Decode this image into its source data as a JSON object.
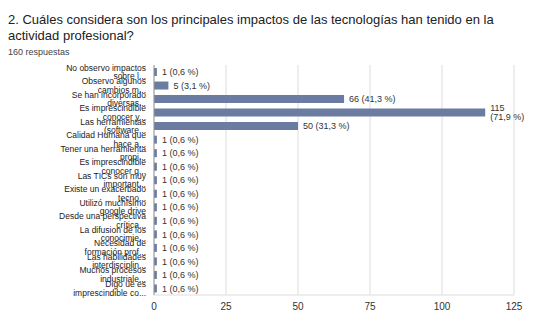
{
  "chart_data": {
    "type": "bar",
    "orientation": "horizontal",
    "title": "2. Cuáles considera son los principales impactos de las tecnologías han tenido en la actividad profesional?",
    "subtitle": "160 respuestas",
    "categories": [
      "No observo impactos sobre l...",
      "Observo algunos cambios m...",
      "Se han incorporado diversas...",
      "Es imprescindible conocer y...",
      "Las herramientas (software...",
      "Calidad Humana que hace a...",
      "Tener una herramienta propi...",
      "Es imprescindible conocer q...",
      "Las TICs son muy important...",
      "Existe un exacerbado tecno...",
      "Utilizó muchísimo google drive",
      "Desde una perspectiva crítica...",
      "La difusion de los conocimie...",
      "Necesidad de formación prof...",
      "Las habilidades interdisciplin...",
      "Muchos procesos industriale...",
      "Digo ue es imprescindible co..."
    ],
    "values": [
      1,
      5,
      66,
      115,
      50,
      1,
      1,
      1,
      1,
      1,
      1,
      1,
      1,
      1,
      1,
      1,
      1
    ],
    "value_labels": [
      "1 (0,6 %)",
      "5 (3,1 %)",
      "66 (41,3 %)",
      "115 (71,9 %)",
      "50 (31,3 %)",
      "1 (0,6 %)",
      "1 (0,6 %)",
      "1 (0,6 %)",
      "1 (0,6 %)",
      "1 (0,6 %)",
      "1 (0,6 %)",
      "1 (0,6 %)",
      "1 (0,6 %)",
      "1 (0,6 %)",
      "1 (0,6 %)",
      "1 (0,6 %)",
      "1 (0,6 %)"
    ],
    "color": "#6b7ba1",
    "xlim": [
      0,
      125
    ],
    "xticks": [
      0,
      25,
      50,
      75,
      100,
      125
    ],
    "grid": true,
    "data_labels": true
  }
}
